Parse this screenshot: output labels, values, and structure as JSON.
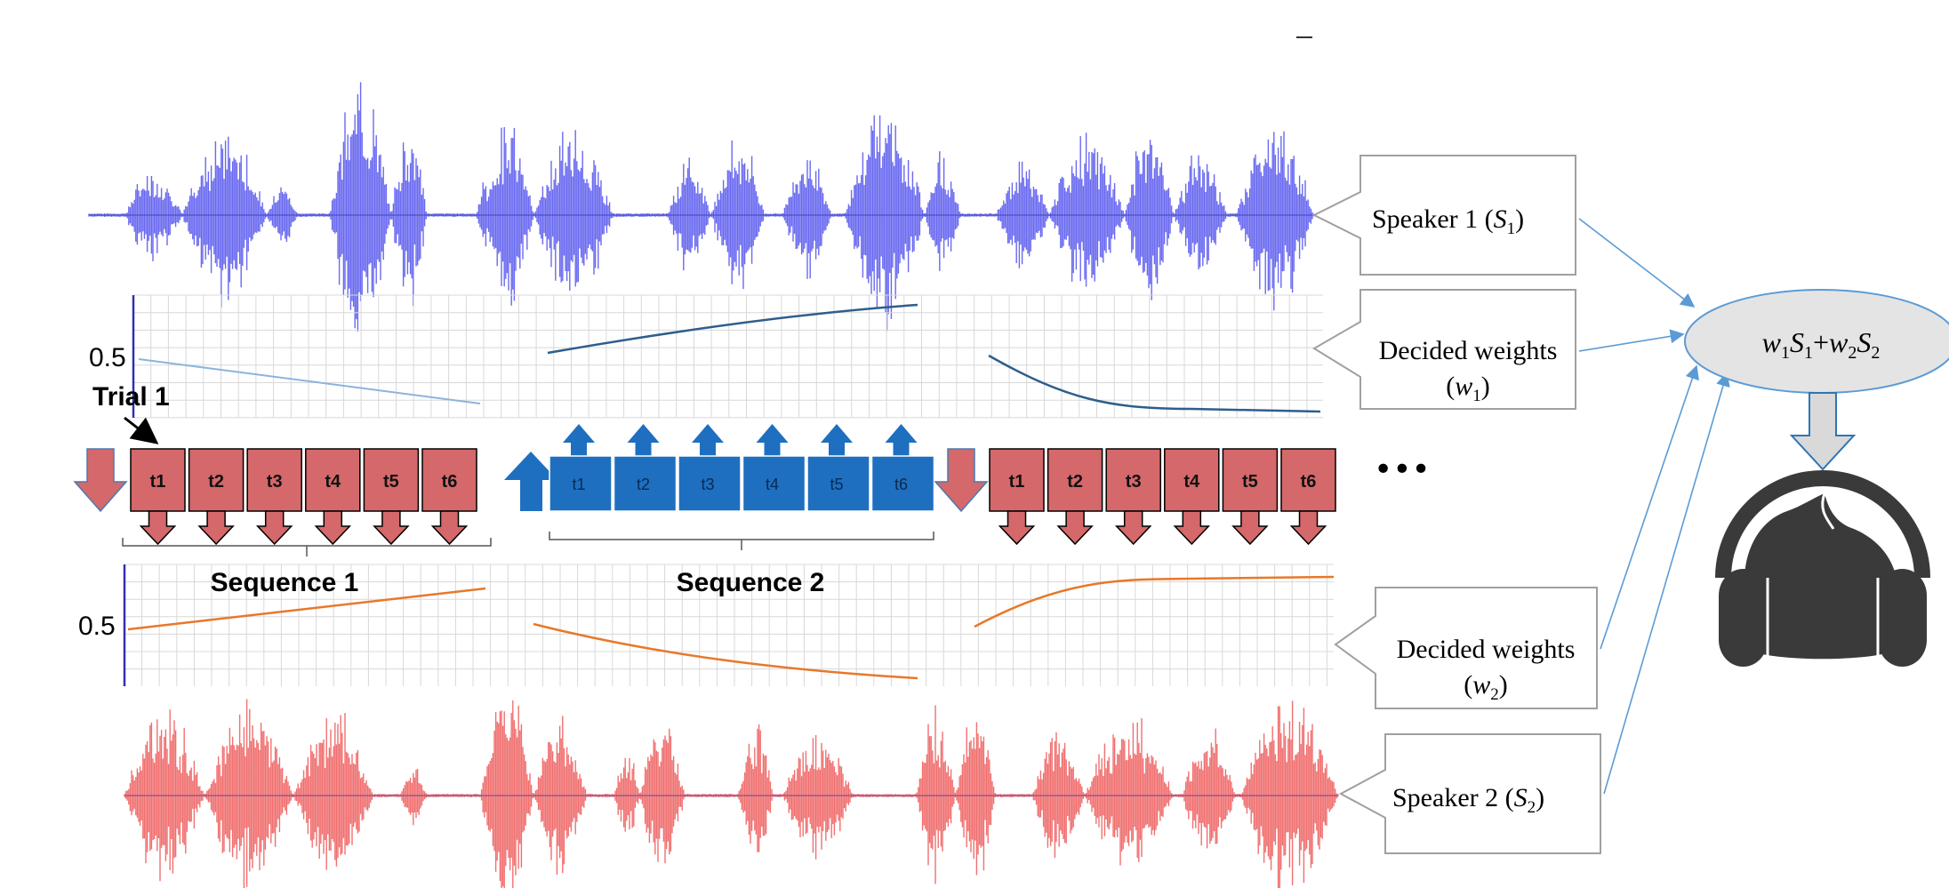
{
  "labels": {
    "trial": "Trial 1",
    "sequence1": "Sequence 1",
    "sequence2": "Sequence 2",
    "ellipsis": "•••",
    "tick_top": "0.5",
    "tick_bottom": "0.5"
  },
  "trial_labels": [
    "t1",
    "t2",
    "t3",
    "t4",
    "t5",
    "t6"
  ],
  "boxes": {
    "speaker1": {
      "text": "Speaker  1 (",
      "var": "S",
      "sub": "1",
      "close": ")"
    },
    "weights1": {
      "line1": "Decided weights",
      "open": "(",
      "var": "w",
      "sub": "1",
      "close": ")"
    },
    "weights2": {
      "line1": "Decided weights",
      "open": "(",
      "var": "w",
      "sub": "2",
      "close": ")"
    },
    "speaker2": {
      "text": "Speaker  2 (",
      "var": "S",
      "sub": "2",
      "close": ")"
    }
  },
  "mix": {
    "w": "w",
    "s": "S",
    "sub1": "1",
    "sub2": "2",
    "plus": "+"
  },
  "colors": {
    "speaker1_wave": "#6a6af0",
    "speaker2_wave": "#f07070",
    "attend_s1_box": "#d4686a",
    "attend_s2_box": "#1f6fc0",
    "weight1_line": "#2e5e8c",
    "weight2_line": "#e8782a",
    "grid": "#d8d8d8",
    "connector": "#5b9bd5",
    "mixer_fill": "#e4e4e4",
    "listener": "#3a3a3a"
  }
}
